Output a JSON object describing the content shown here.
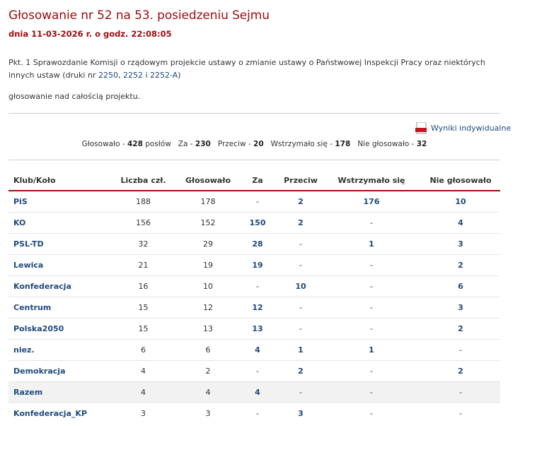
{
  "header": {
    "title": "Głosowanie nr 52 na 53. posiedzeniu Sejmu",
    "subtitle": "dnia 11-03-2026 r. o godz. 22:08:05"
  },
  "agenda": {
    "parts": [
      {
        "text": "Pkt. 1 Sprawozdanie Komisji o rządowym projekcie ustawy o zmianie ustawy o Państwowej Inspekcji Pracy oraz niektórych innych ustaw (druki nr "
      },
      {
        "link": "2250"
      },
      {
        "text": ", "
      },
      {
        "link": "2252"
      },
      {
        "text": " i "
      },
      {
        "link": "2252-A"
      },
      {
        "text": ")"
      }
    ],
    "subject": "głosowanie nad całością projektu."
  },
  "results_link": "Wyniki indywidualne",
  "summary": [
    {
      "label": "Głosowało -",
      "value": 428,
      "unit": "posłów"
    },
    {
      "label": "Za -",
      "value": 230
    },
    {
      "label": "Przeciw -",
      "value": 20
    },
    {
      "label": "Wstrzymało się -",
      "value": 178
    },
    {
      "label": "Nie głosowało -",
      "value": 32
    }
  ],
  "table": {
    "headers": [
      "Klub/Koło",
      "Liczba czł.",
      "Głosowało",
      "Za",
      "Przeciw",
      "Wstrzymało się",
      "Nie głosowało"
    ],
    "rows": [
      [
        "PiS",
        188,
        178,
        "-",
        2,
        176,
        10
      ],
      [
        "KO",
        156,
        152,
        150,
        2,
        "-",
        4
      ],
      [
        "PSL-TD",
        32,
        29,
        28,
        "-",
        1,
        3
      ],
      [
        "Lewica",
        21,
        19,
        19,
        "-",
        "-",
        2
      ],
      [
        "Konfederacja",
        16,
        10,
        "-",
        10,
        "-",
        6
      ],
      [
        "Centrum",
        15,
        12,
        12,
        "-",
        "-",
        3
      ],
      [
        "Polska2050",
        15,
        13,
        13,
        "-",
        "-",
        2
      ],
      [
        "niez.",
        6,
        6,
        4,
        1,
        1,
        "-"
      ],
      [
        "Demokracja",
        4,
        2,
        "-",
        2,
        "-",
        2
      ],
      [
        "Razem",
        4,
        4,
        4,
        "-",
        "-",
        "-"
      ],
      [
        "Konfederacja_KP",
        3,
        3,
        "-",
        3,
        "-",
        "-"
      ]
    ]
  }
}
